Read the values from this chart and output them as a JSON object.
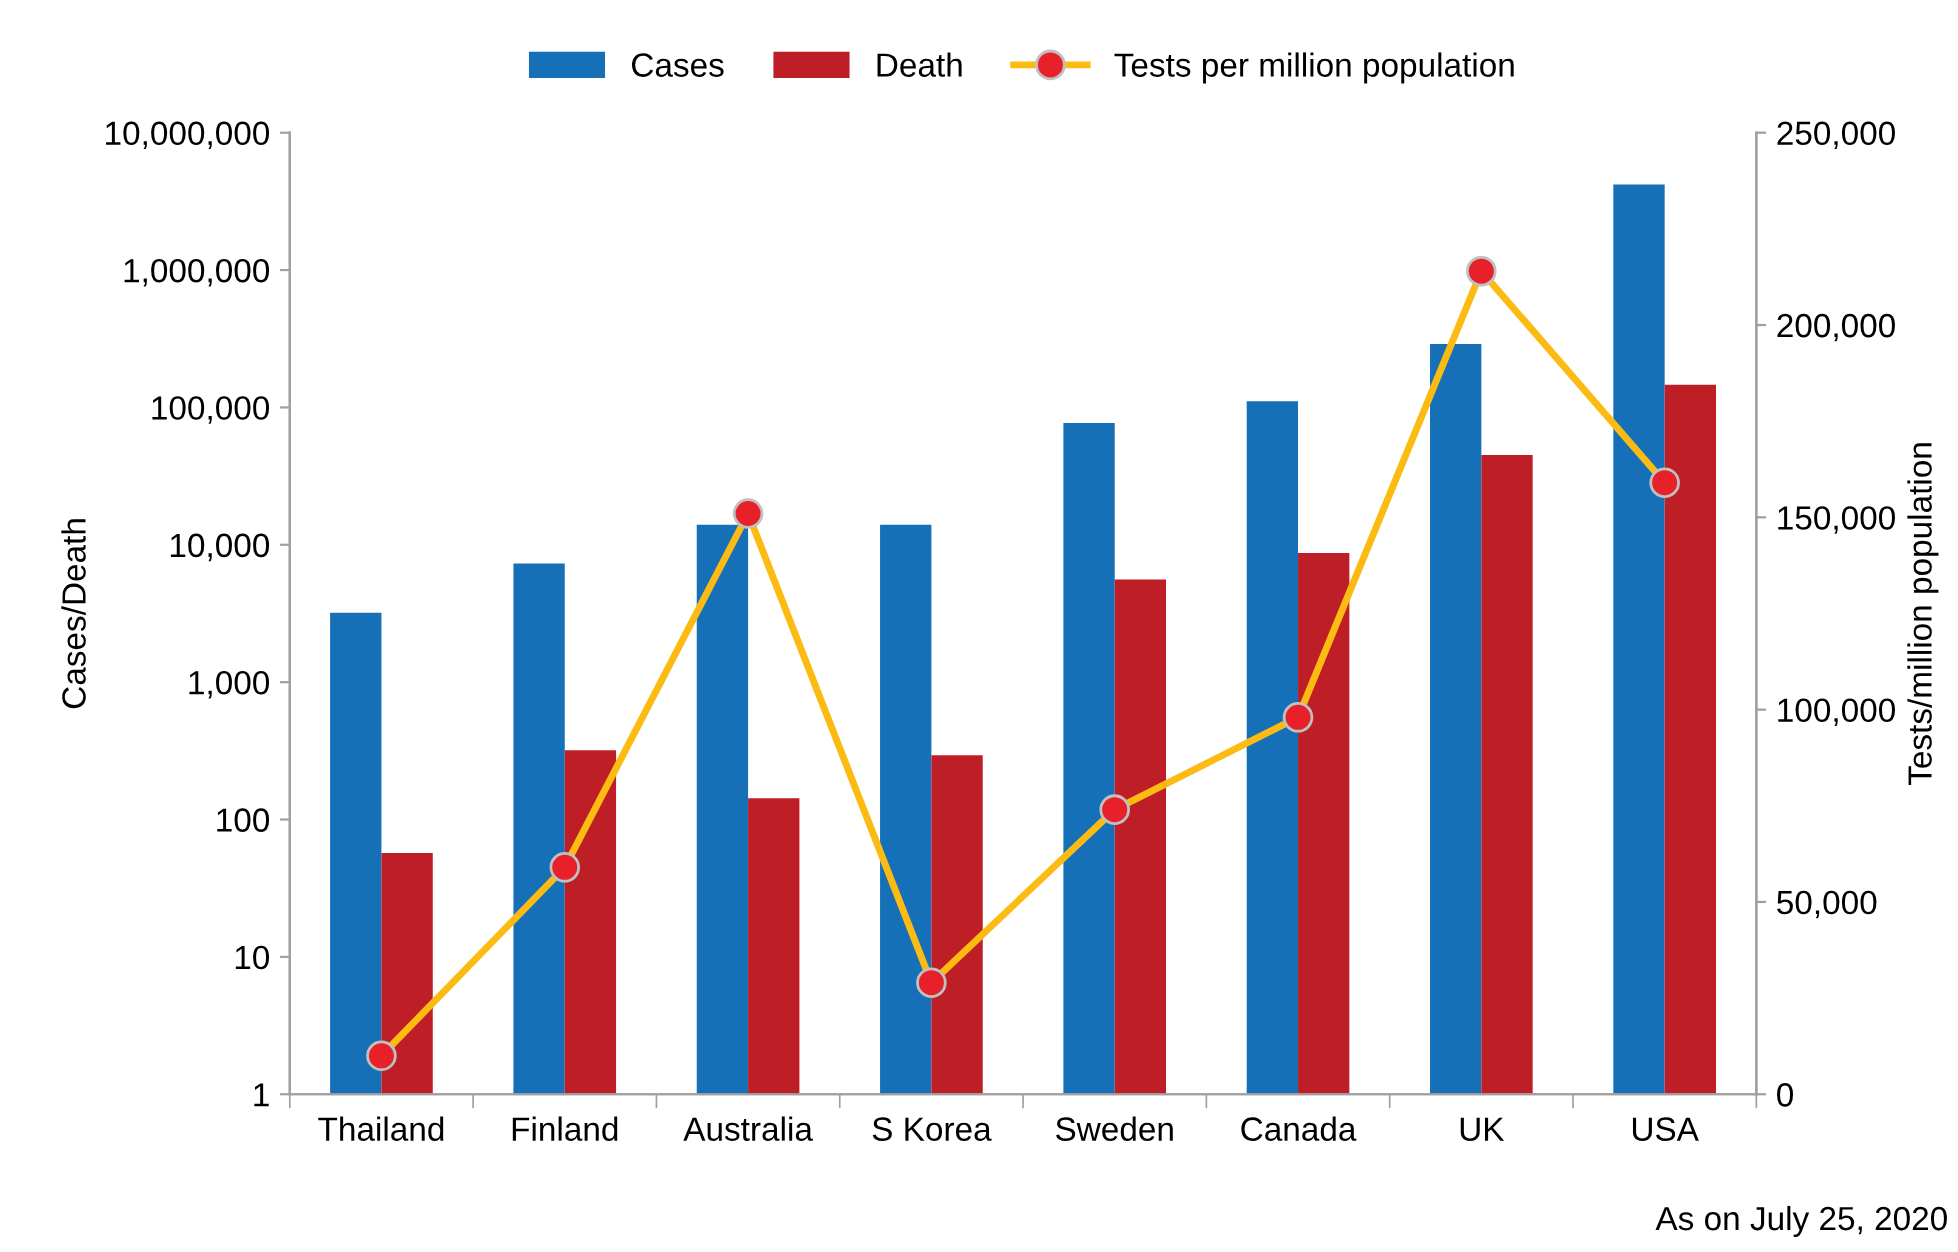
{
  "chart_data": {
    "type": "bar",
    "categories": [
      "Thailand",
      "Finland",
      "Australia",
      "S Korea",
      "Sweden",
      "Canada",
      "UK",
      "USA"
    ],
    "series": [
      {
        "name": "Cases",
        "color": "#1570b8",
        "values": [
          3200,
          7300,
          14000,
          14000,
          77000,
          111000,
          290000,
          4200000
        ]
      },
      {
        "name": "Death",
        "color": "#be1e25",
        "values": [
          57,
          320,
          143,
          294,
          5600,
          8700,
          45000,
          146000
        ]
      },
      {
        "name": "Tests per million population",
        "type": "line",
        "axis": "y2",
        "color": "#fbbb12",
        "marker": "circle",
        "values": [
          10000,
          59000,
          151000,
          29000,
          74000,
          98000,
          214000,
          159000
        ]
      }
    ],
    "log": "y",
    "ylabel": "Cases/Death",
    "y2label": "Tests/million population",
    "ylim": [
      1,
      10000000
    ],
    "yticks": [
      {
        "value": 1,
        "label": "1"
      },
      {
        "value": 10,
        "label": "10"
      },
      {
        "value": 100,
        "label": "100"
      },
      {
        "value": 1000,
        "label": "1,000"
      },
      {
        "value": 10000,
        "label": "10,000"
      },
      {
        "value": 100000,
        "label": "100,000"
      },
      {
        "value": 1000000,
        "label": "1,000,000"
      },
      {
        "value": 10000000,
        "label": "10,000,000"
      }
    ],
    "y2lim": [
      0,
      250000
    ],
    "y2ticks": [
      0,
      {
        "value": 50000,
        "label": "50,000"
      },
      {
        "value": 100000,
        "label": "100,000"
      },
      {
        "value": 150000,
        "label": "150,000"
      },
      {
        "value": 200000,
        "label": "200,000"
      },
      {
        "value": 250000,
        "label": "250,000"
      }
    ],
    "legend": "top",
    "grid": false,
    "annotations": [
      "As on July 25, 2020"
    ]
  }
}
